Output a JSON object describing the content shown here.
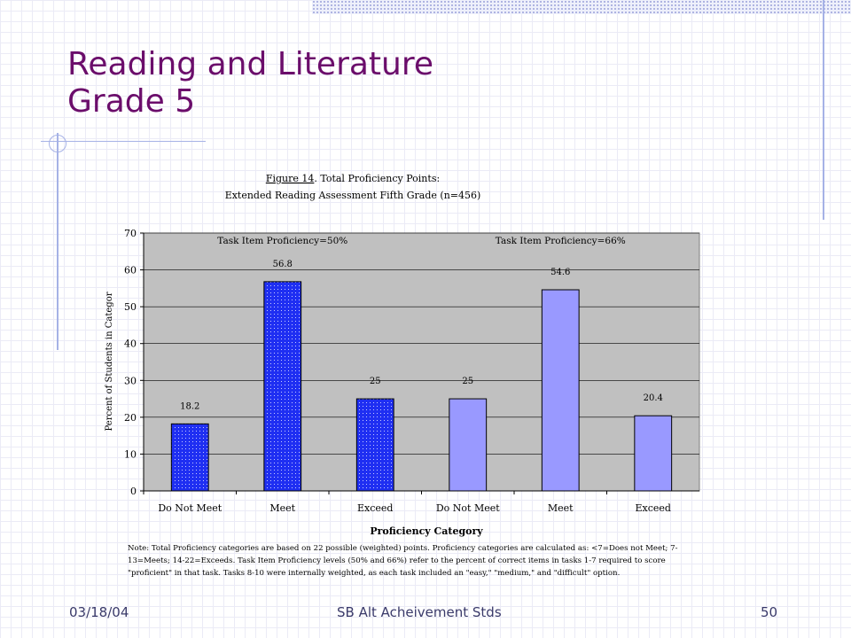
{
  "slide": {
    "title_line1": "Reading and Literature",
    "title_line2": "Grade 5",
    "footer_date": "03/18/04",
    "footer_center": "SB Alt Acheivement Stds",
    "footer_page": "50"
  },
  "chart_data": {
    "type": "bar",
    "title_line1_prefix": "Figure 14",
    "title_line1_suffix": ".  Total Proficiency Points:",
    "title_line2": "Extended Reading Assessment Fifth Grade (n=456)",
    "xlabel": "Proficiency Category",
    "ylabel": "Percent of Students in Categor",
    "ylim": [
      0,
      70
    ],
    "yticks": [
      0,
      10,
      20,
      30,
      40,
      50,
      60,
      70
    ],
    "grid": true,
    "categories": [
      "Do Not Meet",
      "Meet",
      "Exceed",
      "Do Not Meet",
      "Meet",
      "Exceed"
    ],
    "groups": [
      {
        "name": "Task Item Proficiency=50%",
        "indices": [
          0,
          1,
          2
        ],
        "color": "#1f2ff2",
        "pattern": "dotted"
      },
      {
        "name": "Task Item Proficiency=66%",
        "indices": [
          3,
          4,
          5
        ],
        "color": "#9999ff",
        "pattern": "solid"
      }
    ],
    "values": [
      18.2,
      56.8,
      25,
      25,
      54.6,
      20.4
    ],
    "value_labels": [
      "18.2",
      "56.8",
      "25",
      "25",
      "54.6",
      "20.4"
    ],
    "plot_bg": "#c0c0c0",
    "note": "Note:  Total Proficiency categories are based on 22 possible (weighted) points.  Proficiency categories are calculated as: <7=Does not Meet; 7-13=Meets; 14-22=Exceeds.  Task Item Proficiency levels (50% and 66%) refer to the percent of correct items in tasks 1-7 required to score \"proficient\" in that task.  Tasks 8-10 were internally weighted, as each task included an \"easy,\" \"medium,\" and \"difficult\" option."
  }
}
